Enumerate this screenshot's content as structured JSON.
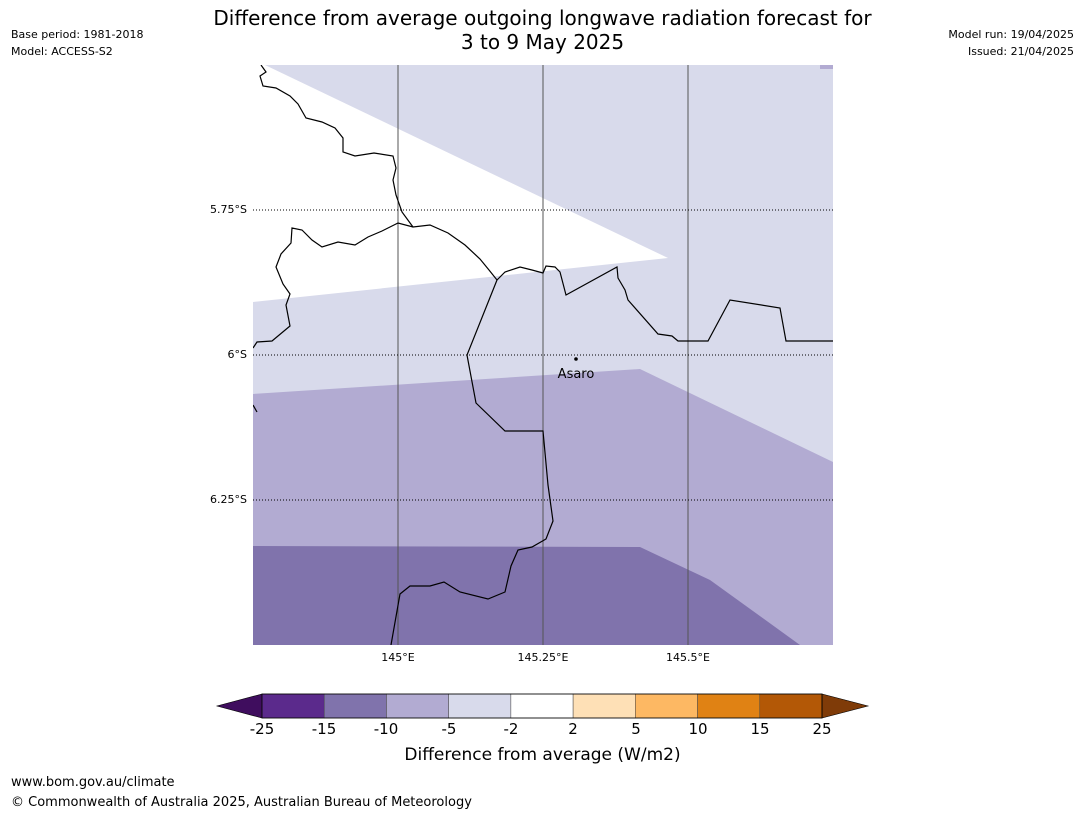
{
  "header": {
    "title_line1": "Difference from average outgoing longwave radiation forecast for",
    "title_line2": "3 to 9 May 2025",
    "base_period": "Base period: 1981-2018",
    "model": "Model: ACCESS-S2",
    "model_run": "Model run: 19/04/2025",
    "issued": "Issued: 21/04/2025"
  },
  "map": {
    "lat_labels": [
      "5.75°S",
      "6°S",
      "6.25°S"
    ],
    "lon_labels": [
      "145°E",
      "145.25°E",
      "145.5°E"
    ],
    "place": "Asaro"
  },
  "colorbar": {
    "ticks": [
      "-25",
      "-15",
      "-10",
      "-5",
      "-2",
      "2",
      "5",
      "10",
      "15",
      "25"
    ],
    "colors": [
      "#3f0d5e",
      "#5b2a8c",
      "#8073ac",
      "#b2abd2",
      "#d8daeb",
      "#ffffff",
      "#fee0b6",
      "#fdb863",
      "#e08214",
      "#b35806",
      "#7f3b08"
    ],
    "label": "Difference from average (W/m2)"
  },
  "footer": {
    "url": "www.bom.gov.au/climate",
    "copyright": "© Commonwealth of Australia 2025, Australian Bureau of Meteorology"
  }
}
